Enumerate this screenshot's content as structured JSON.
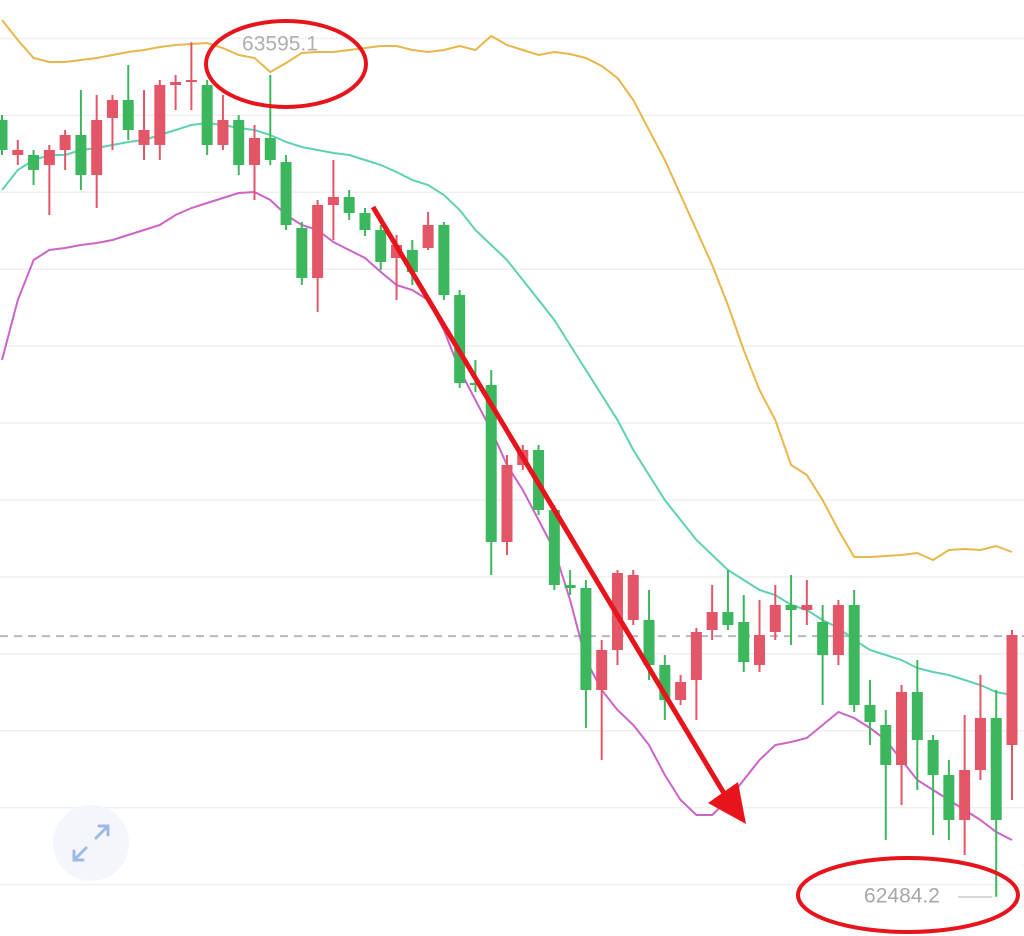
{
  "chart_data": {
    "type": "candlestick",
    "open": [
      63494,
      63448.5,
      63448.5,
      63435.5,
      63455,
      63474.5,
      63422.5,
      63496.6,
      63520,
      63461.5,
      63461.5,
      63539.5,
      63543.4,
      63539.5,
      63461.5,
      63494,
      63435.5,
      63470.6,
      63439.4,
      63353.6,
      63288.6,
      63383.5,
      63393.9,
      63373.1,
      63351,
      63314.6,
      63325,
      63327.6,
      63357.5,
      63266.5,
      63152.1,
      63149.5,
      62945.4,
      63045.5,
      63065,
      62987,
      62889.5,
      62885.6,
      62753,
      62805,
      62844,
      62844,
      62785.5,
      62740,
      62766,
      62831,
      62854.4,
      62841.4,
      62785.5,
      62828.4,
      62863.5,
      62857,
      62841.4,
      62798.5,
      62863.5,
      62733.5,
      62707.5,
      62655.5,
      62750.4,
      62688,
      62642.5,
      62584,
      62649,
      62716.6,
      62681.5
    ],
    "high": [
      63500.5,
      63468,
      63455,
      63461.5,
      63481,
      63533,
      63526.5,
      63526.5,
      63565.5,
      63533,
      63546,
      63552.5,
      63595.1,
      63546,
      63526.5,
      63500.5,
      63487.5,
      63552.5,
      63448.5,
      63361.4,
      63390,
      63442,
      63403,
      63379.6,
      63357.5,
      63344.5,
      63338,
      63374.4,
      63361.4,
      63273,
      63182,
      63169,
      63058.5,
      63071.5,
      63071.5,
      62993.5,
      62909,
      62896,
      62818,
      62909,
      62909,
      62883,
      62798.5,
      62772.5,
      62833.6,
      62889.5,
      62909,
      62876.5,
      62870,
      62889.5,
      62902.5,
      62896,
      62863.5,
      62870,
      62883,
      62766,
      62727,
      62759.5,
      62792,
      62694.5,
      62662,
      62720.5,
      62772.5,
      62753,
      62831
    ],
    "low": [
      63448.5,
      63435.5,
      63409.5,
      63370.5,
      63429,
      63403,
      63379.6,
      63455,
      63468,
      63442,
      63442,
      63507,
      63507,
      63448.5,
      63455,
      63422.5,
      63390,
      63435.5,
      63351,
      63279.5,
      63244.4,
      63338,
      63364,
      63343.2,
      63299,
      63260,
      63279.5,
      63325,
      63260,
      63145.6,
      63140.4,
      62902.5,
      62928.5,
      63039,
      62980.5,
      62883,
      62876.5,
      62703.6,
      62662,
      62785.5,
      62837.5,
      62766,
      62714,
      62733.5,
      62714,
      62818,
      62831,
      62776.4,
      62776.4,
      62818,
      62811.5,
      62837.5,
      62733.5,
      62785.5,
      62724.4,
      62681.5,
      62558,
      62603.5,
      62623,
      62564.5,
      62558,
      62538.5,
      62636,
      62484.2,
      62610
    ],
    "close": [
      63455,
      63455,
      63429,
      63455,
      63474.5,
      63422.5,
      63494,
      63520,
      63481,
      63481,
      63539.5,
      63543.4,
      63546,
      63461.5,
      63494,
      63435.5,
      63470.6,
      63442,
      63357.5,
      63288.6,
      63383.5,
      63393.9,
      63373.1,
      63351,
      63309.4,
      63331.5,
      63296.4,
      63357.5,
      63266.5,
      63152.1,
      63149.5,
      62945.4,
      63045.5,
      63065,
      62987,
      62889.5,
      62885.6,
      62753,
      62805,
      62905.1,
      62902.5,
      62785.5,
      62740,
      62763.4,
      62828.4,
      62854.4,
      62837.5,
      62789.4,
      62824.5,
      62863.5,
      62857,
      62863.5,
      62798.5,
      62863.5,
      62733.5,
      62711.4,
      62655.5,
      62750.4,
      62688,
      62642.5,
      62584,
      62649,
      62716.6,
      62584,
      62824.5
    ],
    "up_color": "#e35667",
    "down_color": "#3db75e",
    "overlays": [
      {
        "color": "#e8b64a",
        "values": [
          63624,
          63598,
          63574.6,
          63569.4,
          63569.4,
          63572,
          63574.6,
          63578.5,
          63582.4,
          63585,
          63588.9,
          63591.5,
          63592.8,
          63594.1,
          63587.6,
          63578.5,
          63574.6,
          63556.4,
          63568.1,
          63581.1,
          63582.4,
          63582.4,
          63585,
          63587.6,
          63590.2,
          63590.2,
          63585,
          63582.4,
          63585,
          63590.2,
          63585,
          63603.2,
          63591.5,
          63585,
          63578.5,
          63582.4,
          63579.8,
          63574.6,
          63564.2,
          63548.6,
          63520,
          63481,
          63442,
          63396.5,
          63351,
          63305.5,
          63253.5,
          63195,
          63143,
          63104,
          63045.5,
          63032.5,
          63000,
          62961,
          62925.9,
          62925.9,
          62927.2,
          62928.5,
          62931.1,
          62922,
          62935,
          62936.3,
          62935,
          62940.2,
          62932.4
        ]
      },
      {
        "color": "#5fd0b2",
        "values": [
          63403,
          63429,
          63442,
          63448.5,
          63448.5,
          63455,
          63457.6,
          63461.5,
          63465.4,
          63468,
          63474.5,
          63481,
          63487.5,
          63490.1,
          63487.5,
          63483.6,
          63481,
          63474.5,
          63465.4,
          63458.9,
          63455,
          63451.1,
          63448.5,
          63442,
          63435.5,
          63426.4,
          63416,
          63409.5,
          63396.5,
          63377,
          63351,
          63331.5,
          63312,
          63286,
          63260,
          63234,
          63201.5,
          63169,
          63136.5,
          63104,
          63065,
          63032.5,
          63000,
          62974,
          62948,
          62928.5,
          62909,
          62896,
          62883,
          62876.5,
          62863.5,
          62857,
          62844,
          62833.6,
          62818,
          62805,
          62798.5,
          62792,
          62781.6,
          62776.4,
          62772.5,
          62766,
          62759.5,
          62750.4,
          62746.5
        ]
      },
      {
        "color": "#cc63c9",
        "values": [
          63182,
          63260,
          63312,
          63325,
          63327.6,
          63331.5,
          63334.1,
          63338,
          63344.5,
          63351,
          63357.5,
          63370.5,
          63379.6,
          63386.1,
          63392.6,
          63399.1,
          63400.4,
          63390,
          63370.5,
          63357.5,
          63351,
          63335.4,
          63325,
          63314.6,
          63296.4,
          63279.5,
          63273,
          63260,
          63221,
          63169,
          63130,
          63091,
          63045.5,
          63013,
          62974,
          62935,
          62870,
          62792,
          62753,
          62727,
          62707.5,
          62681.5,
          62642.5,
          62610,
          62590.5,
          62590.5,
          62610,
          62636,
          62662,
          62681.5,
          62685.4,
          62690.6,
          62707.5,
          62724.4,
          62716.6,
          62703.6,
          62688,
          62662,
          62636,
          62623,
          62610,
          62597,
          62584,
          62568.4,
          62558
        ]
      }
    ],
    "ylim": [
      62433.2,
      63650
    ],
    "yticks": [
      62500,
      62600,
      62700,
      62800,
      62900,
      63000,
      63100,
      63200,
      63300,
      63400,
      63500,
      63600
    ],
    "grid": true,
    "tick_labels": false,
    "price_line": 62823,
    "high_label": "63595.1",
    "low_label": "62484.2"
  }
}
